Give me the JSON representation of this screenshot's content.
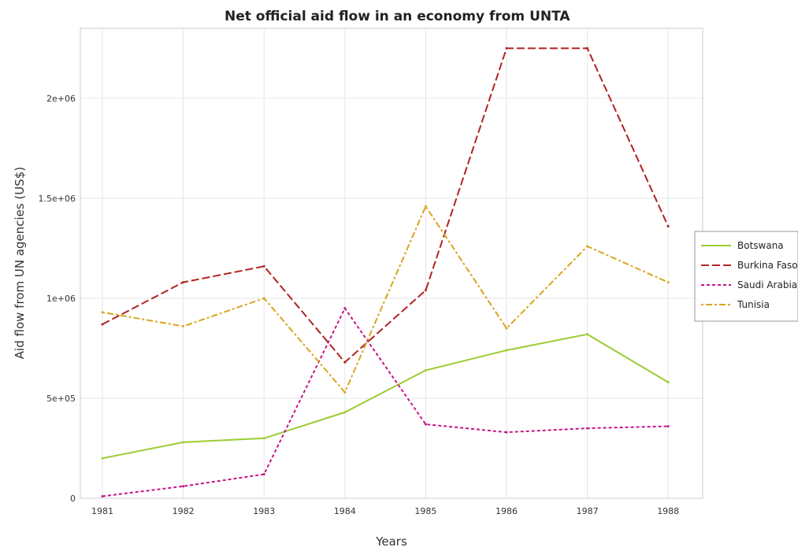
{
  "chart_data": {
    "type": "line",
    "title": "Net official aid flow in an economy from UNTA",
    "xlabel": "Years",
    "ylabel": "Aid flow from UN agencies (US$)",
    "categories": [
      "1981",
      "1982",
      "1983",
      "1984",
      "1985",
      "1986",
      "1987",
      "1988"
    ],
    "ylim": [
      0,
      2350000
    ],
    "yticks": [
      0,
      500000,
      1000000,
      1500000,
      2000000
    ],
    "ytick_labels": [
      "0",
      "5e+05",
      "1e+06",
      "1.5e+06",
      "2e+06"
    ],
    "grid": true,
    "legend_position": "right",
    "series": [
      {
        "name": "Botswana",
        "color": "#9acd32",
        "values": [
          200000,
          280000,
          300000,
          430000,
          640000,
          740000,
          820000,
          580000
        ]
      },
      {
        "name": "Burkina Faso",
        "color": "#b22222",
        "values": [
          870000,
          1080000,
          1160000,
          680000,
          1040000,
          2250000,
          2250000,
          1360000
        ]
      },
      {
        "name": "Saudi Arabia",
        "color": "#c71585",
        "values": [
          10000,
          60000,
          120000,
          950000,
          370000,
          330000,
          350000,
          360000
        ]
      },
      {
        "name": "Tunisia",
        "color": "#daa520",
        "values": [
          930000,
          860000,
          1000000,
          530000,
          1460000,
          850000,
          1260000,
          1080000
        ]
      }
    ]
  }
}
